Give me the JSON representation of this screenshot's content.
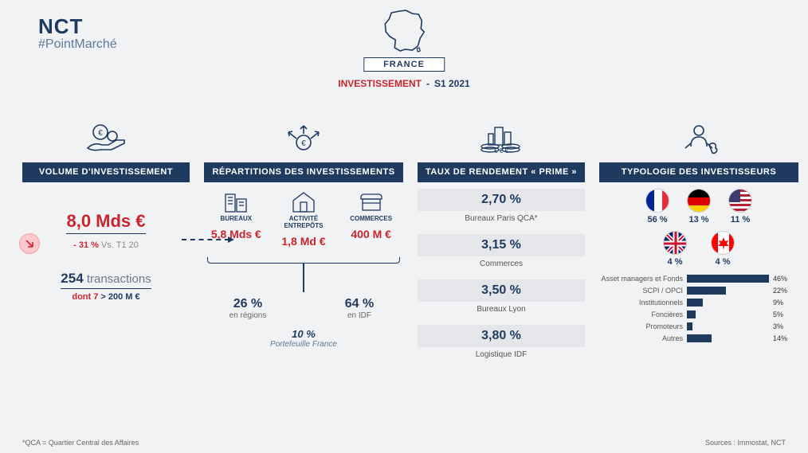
{
  "brand": {
    "main": "NCT",
    "sub": "#PointMarché"
  },
  "header": {
    "country": "FRANCE",
    "subtitle_a": "INVESTISSEMENT",
    "subtitle_sep": "  -  ",
    "subtitle_b": "S1 2021"
  },
  "colors": {
    "navy": "#1e3a5f",
    "red": "#c9252d",
    "pill_bg": "#ffc9cc",
    "grey_bg": "#e4e6ea"
  },
  "col1": {
    "title": "VOLUME D'INVESTISSEMENT",
    "headline": "8,0 Mds €",
    "delta": "- 31 %",
    "delta_cmp": " Vs. T1 20",
    "tx_count": "254",
    "tx_word": " transactions",
    "tx_sub_a": "dont 7",
    "tx_sub_b": " > 200 M €"
  },
  "col2": {
    "title": "RÉPARTITIONS DES INVESTISSEMENTS",
    "types": [
      {
        "label": "BUREAUX",
        "value": "5,8 Mds €"
      },
      {
        "label": "ACTIVITÉ ENTREPÔTS",
        "value": "1,8 Md €"
      },
      {
        "label": "COMMERCES",
        "value": "400 M €"
      }
    ],
    "split_left": {
      "pct": "26 %",
      "label": "en régions"
    },
    "split_right": {
      "pct": "64 %",
      "label": "en IDF"
    },
    "portefeuille": {
      "pct": "10 %",
      "label": "Portefeuille France"
    }
  },
  "col3": {
    "title": "TAUX DE RENDEMENT « PRIME »",
    "yields": [
      {
        "pct": "2,70 %",
        "label": "Bureaux Paris QCA*"
      },
      {
        "pct": "3,15 %",
        "label": "Commerces"
      },
      {
        "pct": "3,50 %",
        "label": "Bureaux Lyon"
      },
      {
        "pct": "3,80 %",
        "label": "Logistique IDF"
      }
    ]
  },
  "col4": {
    "title": "TYPOLOGIE DES INVESTISSEURS",
    "flags": [
      {
        "name": "France",
        "pct": "56 %",
        "svg": "fr"
      },
      {
        "name": "Germany",
        "pct": "13 %",
        "svg": "de"
      },
      {
        "name": "USA",
        "pct": "11 %",
        "svg": "us"
      },
      {
        "name": "UK",
        "pct": "4 %",
        "svg": "uk"
      },
      {
        "name": "Canada",
        "pct": "4 %",
        "svg": "ca"
      }
    ],
    "bars": [
      {
        "label": "Asset managers et Fonds",
        "pct": 46,
        "text": "46%"
      },
      {
        "label": "SCPI / OPCI",
        "pct": 22,
        "text": "22%"
      },
      {
        "label": "Institutionnels",
        "pct": 9,
        "text": "9%"
      },
      {
        "label": "Foncières",
        "pct": 5,
        "text": "5%"
      },
      {
        "label": "Promoteurs",
        "pct": 3,
        "text": "3%"
      },
      {
        "label": "Autres",
        "pct": 14,
        "text": "14%"
      }
    ],
    "bar_max": 46
  },
  "foot": {
    "left": "*QCA = Quartier Central des Affaires",
    "right": "Sources : Immostat, NCT"
  }
}
